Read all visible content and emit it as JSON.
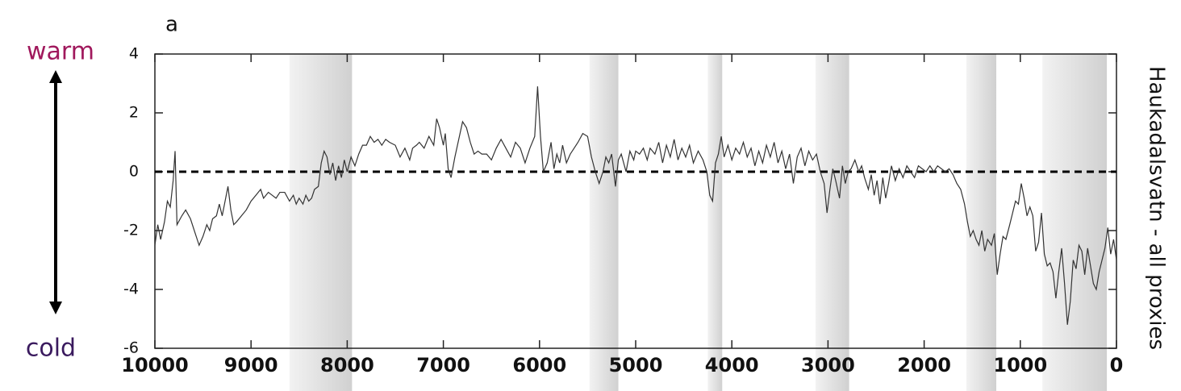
{
  "chart_data": {
    "type": "line",
    "panel_label": "a",
    "annotations": [
      "warm",
      "cold"
    ],
    "y_label_right": "Haukadalsvatn - all proxies",
    "xlim": [
      10000,
      0
    ],
    "ylim": [
      -6,
      4
    ],
    "xticks": [
      10000,
      9000,
      8000,
      7000,
      6000,
      5000,
      4000,
      3000,
      2000,
      1000,
      0
    ],
    "yticks": [
      -6,
      -4,
      -2,
      0,
      2,
      4
    ],
    "reference_line": 0,
    "color": "#333333",
    "shaded_intervals": [
      [
        8600,
        7950
      ],
      [
        5480,
        5180
      ],
      [
        4250,
        4100
      ],
      [
        3130,
        2780
      ],
      [
        1560,
        1250
      ],
      [
        770,
        100
      ]
    ],
    "x": [
      10000,
      9970,
      9940,
      9900,
      9870,
      9840,
      9810,
      9790,
      9770,
      9720,
      9680,
      9630,
      9580,
      9540,
      9500,
      9460,
      9430,
      9400,
      9360,
      9330,
      9300,
      9270,
      9240,
      9210,
      9180,
      9150,
      9100,
      9050,
      9000,
      8950,
      8900,
      8870,
      8820,
      8780,
      8740,
      8700,
      8650,
      8600,
      8560,
      8530,
      8500,
      8460,
      8430,
      8400,
      8370,
      8340,
      8300,
      8270,
      8240,
      8210,
      8180,
      8150,
      8120,
      8090,
      8060,
      8030,
      8000,
      7960,
      7920,
      7880,
      7840,
      7800,
      7760,
      7720,
      7680,
      7640,
      7600,
      7560,
      7500,
      7450,
      7400,
      7350,
      7320,
      7280,
      7250,
      7200,
      7150,
      7100,
      7070,
      7040,
      7000,
      6980,
      6950,
      6920,
      6880,
      6840,
      6800,
      6760,
      6720,
      6680,
      6640,
      6600,
      6550,
      6500,
      6450,
      6400,
      6350,
      6300,
      6250,
      6200,
      6150,
      6100,
      6050,
      6020,
      5990,
      5960,
      5920,
      5880,
      5850,
      5820,
      5790,
      5760,
      5720,
      5680,
      5640,
      5600,
      5550,
      5500,
      5460,
      5420,
      5380,
      5340,
      5310,
      5280,
      5250,
      5210,
      5180,
      5150,
      5100,
      5060,
      5020,
      5000,
      4960,
      4920,
      4880,
      4850,
      4800,
      4760,
      4720,
      4680,
      4640,
      4600,
      4560,
      4520,
      4480,
      4440,
      4400,
      4350,
      4300,
      4260,
      4230,
      4200,
      4170,
      4140,
      4110,
      4080,
      4040,
      4000,
      3960,
      3920,
      3880,
      3840,
      3800,
      3760,
      3720,
      3680,
      3640,
      3600,
      3560,
      3520,
      3480,
      3440,
      3400,
      3360,
      3320,
      3280,
      3240,
      3200,
      3160,
      3120,
      3080,
      3040,
      3010,
      2980,
      2950,
      2920,
      2880,
      2850,
      2820,
      2790,
      2760,
      2720,
      2680,
      2650,
      2620,
      2580,
      2550,
      2520,
      2490,
      2460,
      2430,
      2400,
      2370,
      2340,
      2300,
      2260,
      2220,
      2180,
      2140,
      2100,
      2060,
      2020,
      1980,
      1940,
      1900,
      1860,
      1820,
      1780,
      1740,
      1700,
      1660,
      1620,
      1580,
      1550,
      1520,
      1490,
      1460,
      1430,
      1400,
      1370,
      1340,
      1300,
      1270,
      1240,
      1210,
      1180,
      1150,
      1110,
      1080,
      1050,
      1020,
      990,
      960,
      930,
      900,
      870,
      840,
      810,
      780,
      750,
      720,
      690,
      660,
      630,
      600,
      570,
      540,
      510,
      480,
      450,
      420,
      390,
      360,
      330,
      300,
      270,
      240,
      210,
      180,
      150,
      120,
      90,
      60,
      30,
      0
    ],
    "values": [
      -2.5,
      -1.8,
      -2.3,
      -1.7,
      -1.0,
      -1.2,
      -0.3,
      0.7,
      -1.8,
      -1.5,
      -1.3,
      -1.6,
      -2.1,
      -2.5,
      -2.2,
      -1.8,
      -2.0,
      -1.6,
      -1.5,
      -1.1,
      -1.5,
      -1.0,
      -0.5,
      -1.3,
      -1.8,
      -1.7,
      -1.5,
      -1.3,
      -1.0,
      -0.8,
      -0.6,
      -0.9,
      -0.7,
      -0.8,
      -0.9,
      -0.7,
      -0.7,
      -1.0,
      -0.8,
      -1.1,
      -0.9,
      -1.1,
      -0.8,
      -1.0,
      -0.9,
      -0.6,
      -0.5,
      0.3,
      0.7,
      0.5,
      -0.1,
      0.3,
      -0.3,
      0.2,
      -0.2,
      0.4,
      0.0,
      0.5,
      0.2,
      0.6,
      0.9,
      0.9,
      1.2,
      1.0,
      1.1,
      0.9,
      1.1,
      1.0,
      0.9,
      0.5,
      0.8,
      0.4,
      0.8,
      0.9,
      1.0,
      0.8,
      1.2,
      0.9,
      1.8,
      1.5,
      0.9,
      1.3,
      0.1,
      -0.2,
      0.5,
      1.1,
      1.7,
      1.5,
      1.0,
      0.6,
      0.7,
      0.6,
      0.6,
      0.4,
      0.8,
      1.1,
      0.8,
      0.5,
      1.0,
      0.8,
      0.3,
      0.8,
      1.2,
      2.9,
      1.2,
      0.0,
      0.3,
      1.0,
      0.1,
      0.6,
      0.3,
      0.9,
      0.3,
      0.6,
      0.8,
      1.0,
      1.3,
      1.2,
      0.5,
      0.0,
      -0.4,
      0.0,
      0.5,
      0.3,
      0.6,
      -0.5,
      0.4,
      0.6,
      0.0,
      0.7,
      0.4,
      0.7,
      0.6,
      0.8,
      0.4,
      0.8,
      0.6,
      1.0,
      0.3,
      0.9,
      0.5,
      1.1,
      0.4,
      0.8,
      0.5,
      0.9,
      0.3,
      0.7,
      0.4,
      0.0,
      -0.8,
      -1.0,
      0.3,
      0.6,
      1.2,
      0.5,
      0.9,
      0.4,
      0.8,
      0.6,
      1.0,
      0.5,
      0.8,
      0.2,
      0.7,
      0.3,
      0.9,
      0.5,
      1.0,
      0.3,
      0.7,
      0.1,
      0.6,
      -0.4,
      0.5,
      0.8,
      0.2,
      0.7,
      0.4,
      0.6,
      0.0,
      -0.4,
      -1.4,
      -0.6,
      0.1,
      -0.3,
      -0.9,
      0.2,
      -0.4,
      0.0,
      0.1,
      0.4,
      0.0,
      0.2,
      -0.2,
      -0.6,
      -0.1,
      -0.8,
      -0.3,
      -1.1,
      -0.2,
      -0.9,
      -0.4,
      0.2,
      -0.3,
      0.1,
      -0.2,
      0.2,
      0.0,
      -0.2,
      0.2,
      0.1,
      0.0,
      0.2,
      0.0,
      0.2,
      0.1,
      0.0,
      0.1,
      -0.1,
      -0.4,
      -0.6,
      -1.1,
      -1.7,
      -2.2,
      -2.0,
      -2.3,
      -2.5,
      -2.0,
      -2.7,
      -2.3,
      -2.5,
      -2.1,
      -3.5,
      -2.8,
      -2.2,
      -2.3,
      -1.8,
      -1.4,
      -1.0,
      -1.1,
      -0.4,
      -0.9,
      -1.5,
      -1.2,
      -1.5,
      -2.7,
      -2.4,
      -1.4,
      -2.8,
      -3.2,
      -3.1,
      -3.4,
      -4.3,
      -3.4,
      -2.6,
      -3.8,
      -5.2,
      -4.4,
      -3.0,
      -3.3,
      -2.5,
      -2.7,
      -3.5,
      -2.6,
      -3.2,
      -3.8,
      -4.0,
      -3.4,
      -3.0,
      -2.6,
      -1.9,
      -2.8,
      -2.3,
      -3.0
    ]
  }
}
